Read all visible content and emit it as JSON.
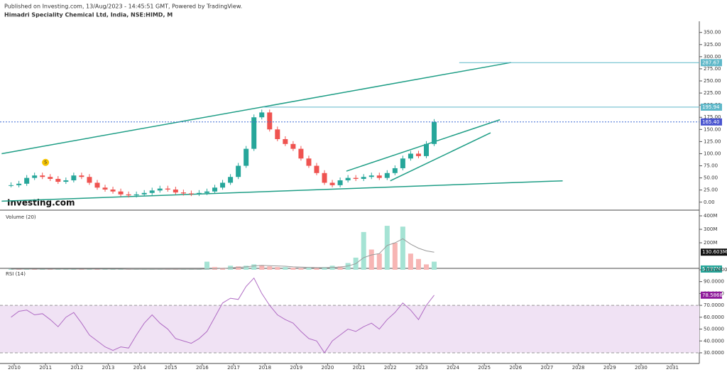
{
  "header": {
    "published": "Published on Investing.com, 13/Aug/2023 - 14:45:51 GMT, Powered by TradingView.",
    "logo": "Investing.com"
  },
  "chart_data": [
    {
      "type": "candlestick",
      "title": "Himadri Speciality Chemical Ltd, India, NSE:HIMD, M",
      "x": [
        2009.9,
        2010.15,
        2010.4,
        2010.65,
        2010.9,
        2011.15,
        2011.4,
        2011.65,
        2011.9,
        2012.15,
        2012.4,
        2012.65,
        2012.9,
        2013.15,
        2013.4,
        2013.65,
        2013.9,
        2014.15,
        2014.4,
        2014.65,
        2014.9,
        2015.15,
        2015.4,
        2015.65,
        2015.9,
        2016.15,
        2016.4,
        2016.65,
        2016.9,
        2017.15,
        2017.4,
        2017.65,
        2017.9,
        2018.15,
        2018.4,
        2018.65,
        2018.9,
        2019.15,
        2019.4,
        2019.65,
        2019.9,
        2020.15,
        2020.4,
        2020.65,
        2020.9,
        2021.15,
        2021.4,
        2021.65,
        2021.9,
        2022.15,
        2022.4,
        2022.65,
        2022.9,
        2023.15,
        2023.4
      ],
      "series": [
        {
          "name": "Price",
          "color": "#26a69a",
          "down_color": "#ef5350",
          "values": [
            35,
            38,
            50,
            55,
            52,
            48,
            42,
            45,
            55,
            52,
            40,
            30,
            26,
            22,
            16,
            14,
            16,
            19,
            24,
            28,
            26,
            20,
            18,
            17,
            19,
            22,
            30,
            40,
            52,
            75,
            110,
            175,
            185,
            150,
            130,
            120,
            110,
            90,
            75,
            60,
            40,
            35,
            45,
            50,
            48,
            52,
            55,
            50,
            60,
            70,
            90,
            100,
            95,
            120,
            165.4
          ]
        }
      ],
      "xlim": [
        2009.547,
        2031.86
      ],
      "ylim": [
        -15,
        373
      ],
      "yticks": [
        {
          "value": 0,
          "label": "0.00"
        },
        {
          "value": 25,
          "label": "25.00"
        },
        {
          "value": 50,
          "label": "50.00"
        },
        {
          "value": 75,
          "label": "75.00"
        },
        {
          "value": 100,
          "label": "100.00"
        },
        {
          "value": 125,
          "label": "125.00"
        },
        {
          "value": 150,
          "label": "150.00"
        },
        {
          "value": 175,
          "label": "175.00"
        },
        {
          "value": 200,
          "label": "200.00"
        },
        {
          "value": 225,
          "label": "225.00"
        },
        {
          "value": 250,
          "label": "250.00"
        },
        {
          "value": 275,
          "label": "275.00"
        },
        {
          "value": 300,
          "label": "300.00"
        },
        {
          "value": 325,
          "label": "325.00"
        },
        {
          "value": 350,
          "label": "350.00"
        }
      ],
      "levels": [
        287.67,
        195.94,
        {
          "value": 165.4,
          "label": "165.40"
        }
      ],
      "trendlines": [
        {
          "x": [
            2009.6,
            2025.85
          ],
          "y": [
            100,
            288
          ]
        },
        {
          "x": [
            2009.6,
            2027.5
          ],
          "y": [
            2,
            44
          ]
        },
        {
          "x": [
            2020.6,
            2025.5
          ],
          "y": [
            64,
            170
          ]
        },
        {
          "x": [
            2022.0,
            2025.2
          ],
          "y": [
            44,
            143
          ]
        }
      ],
      "event": {
        "x": 2011,
        "y": 82,
        "label": "S"
      }
    },
    {
      "type": "bar",
      "title": "Volume (20)",
      "x": [
        2009.9,
        2010.15,
        2010.4,
        2010.65,
        2010.9,
        2011.15,
        2011.4,
        2011.65,
        2011.9,
        2012.15,
        2012.4,
        2012.65,
        2012.9,
        2013.15,
        2013.4,
        2013.65,
        2013.9,
        2014.15,
        2014.4,
        2014.65,
        2014.9,
        2015.15,
        2015.4,
        2015.65,
        2015.9,
        2016.15,
        2016.4,
        2016.65,
        2016.9,
        2017.15,
        2017.4,
        2017.65,
        2017.9,
        2018.15,
        2018.4,
        2018.65,
        2018.9,
        2019.15,
        2019.4,
        2019.65,
        2019.9,
        2020.15,
        2020.4,
        2020.65,
        2020.9,
        2021.15,
        2021.4,
        2021.65,
        2021.9,
        2022.15,
        2022.4,
        2022.65,
        2022.9,
        2023.15,
        2023.4
      ],
      "series": [
        {
          "name": "Volume",
          "color": "#a5e3d4",
          "down_color": "#f7b5b4",
          "values": [
            6,
            5,
            8,
            5,
            6,
            4,
            5,
            5,
            7,
            4,
            4,
            3,
            3,
            3,
            3,
            2,
            3,
            4,
            5,
            5,
            4,
            3,
            3,
            3,
            3,
            60,
            20,
            15,
            30,
            25,
            30,
            40,
            35,
            25,
            20,
            20,
            15,
            12,
            15,
            12,
            20,
            30,
            25,
            50,
            90,
            280,
            150,
            120,
            326,
            200,
            320,
            120,
            80,
            40,
            60
          ]
        },
        {
          "name": "MA",
          "color": "#999999",
          "values": [
            5,
            5,
            5,
            5,
            5,
            5,
            5,
            5,
            5,
            5,
            5,
            5,
            5,
            5,
            5,
            4,
            4,
            4,
            4,
            4,
            4,
            4,
            4,
            4,
            4,
            6,
            8,
            10,
            14,
            18,
            22,
            28,
            32,
            30,
            28,
            26,
            22,
            20,
            18,
            16,
            15,
            18,
            20,
            28,
            45,
            90,
            110,
            120,
            180,
            200,
            230,
            190,
            160,
            140,
            130.603
          ]
        }
      ],
      "xlim": [
        2009.547,
        2031.86
      ],
      "ylim": [
        0,
        437
      ],
      "yticks": [
        {
          "value": 200,
          "label": "200M"
        },
        {
          "value": 300,
          "label": "300M"
        },
        {
          "value": 400,
          "label": "400M"
        }
      ],
      "levels": [
        {
          "value": 130.603,
          "label": "130.603M"
        },
        {
          "value": 5.597,
          "label": "5.597M"
        }
      ]
    },
    {
      "type": "line",
      "title": "RSI (14)",
      "x": [
        2009.9,
        2010.15,
        2010.4,
        2010.65,
        2010.9,
        2011.15,
        2011.4,
        2011.65,
        2011.9,
        2012.15,
        2012.4,
        2012.65,
        2012.9,
        2013.15,
        2013.4,
        2013.65,
        2013.9,
        2014.15,
        2014.4,
        2014.65,
        2014.9,
        2015.15,
        2015.4,
        2015.65,
        2015.9,
        2016.15,
        2016.4,
        2016.65,
        2016.9,
        2017.15,
        2017.4,
        2017.65,
        2017.9,
        2018.15,
        2018.4,
        2018.65,
        2018.9,
        2019.15,
        2019.4,
        2019.65,
        2019.9,
        2020.15,
        2020.4,
        2020.65,
        2020.9,
        2021.15,
        2021.4,
        2021.65,
        2021.9,
        2022.15,
        2022.4,
        2022.65,
        2022.9,
        2023.15,
        2023.4
      ],
      "series": [
        {
          "name": "RSI",
          "color": "#b06cc4",
          "values": [
            60,
            65,
            66,
            62,
            63,
            58,
            52,
            60,
            64,
            55,
            45,
            40,
            35,
            32,
            35,
            34,
            45,
            55,
            62,
            55,
            50,
            42,
            40,
            38,
            42,
            48,
            60,
            72,
            76,
            75,
            86,
            93,
            80,
            70,
            62,
            58,
            55,
            48,
            42,
            40,
            30,
            40,
            45,
            50,
            48,
            52,
            55,
            50,
            58,
            64,
            72,
            66,
            58,
            70,
            78.5868
          ]
        }
      ],
      "xlim": [
        2009.547,
        2031.86
      ],
      "ylim": [
        21,
        100
      ],
      "yticks": [
        {
          "value": 30,
          "label": "30.0000"
        },
        {
          "value": 40,
          "label": "40.0000"
        },
        {
          "value": 50,
          "label": "50.0000"
        },
        {
          "value": 60,
          "label": "60.0000"
        },
        {
          "value": 70,
          "label": "70.0000"
        },
        {
          "value": 80,
          "label": "80.0000"
        },
        {
          "value": 90,
          "label": "90.0000"
        },
        {
          "value": 100,
          "label": "100.0000"
        }
      ],
      "band": [
        30,
        70
      ],
      "levels": [
        {
          "value": 78.5868,
          "label": "78.5868"
        }
      ],
      "xticks": [
        2010,
        2011,
        2012,
        2013,
        2014,
        2015,
        2016,
        2017,
        2018,
        2019,
        2020,
        2021,
        2022,
        2023,
        2024,
        2025,
        2026,
        2027,
        2028,
        2029,
        2030,
        2031
      ]
    }
  ]
}
